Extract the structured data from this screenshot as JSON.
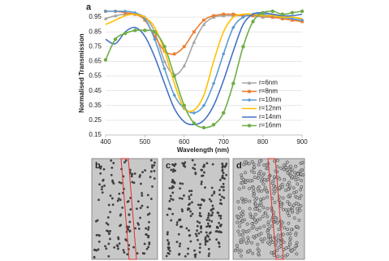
{
  "chart_data": {
    "type": "line",
    "panel_label": "a",
    "x_label": "Wavelength (nm)",
    "y_label": "Normalised Transmission",
    "x": [
      400,
      425,
      450,
      475,
      500,
      525,
      550,
      575,
      600,
      625,
      650,
      675,
      700,
      725,
      750,
      775,
      800,
      825,
      850,
      875,
      900
    ],
    "series": [
      {
        "name": "r=6nm",
        "color": "#a5a5a5",
        "marker": "triangle",
        "values": [
          0.94,
          0.96,
          0.97,
          0.97,
          0.95,
          0.85,
          0.65,
          0.56,
          0.62,
          0.78,
          0.9,
          0.95,
          0.96,
          0.96,
          0.96,
          0.96,
          0.95,
          0.95,
          0.94,
          0.93,
          0.93
        ]
      },
      {
        "name": "r=8nm",
        "color": "#ed7d31",
        "marker": "square",
        "values": [
          0.99,
          0.99,
          0.98,
          0.97,
          0.93,
          0.82,
          0.72,
          0.7,
          0.75,
          0.85,
          0.93,
          0.96,
          0.97,
          0.97,
          0.96,
          0.96,
          0.96,
          0.95,
          0.94,
          0.93,
          0.92
        ]
      },
      {
        "name": "r=10nm",
        "color": "#5b9bd5",
        "marker": "diamond",
        "values": [
          0.99,
          0.99,
          0.99,
          0.98,
          0.94,
          0.8,
          0.6,
          0.42,
          0.33,
          0.3,
          0.35,
          0.5,
          0.7,
          0.88,
          0.95,
          0.97,
          0.97,
          0.96,
          0.95,
          0.94,
          0.93
        ]
      },
      {
        "name": "r=12nm",
        "color": "#ffc000",
        "marker": "none",
        "values": [
          0.9,
          0.93,
          0.96,
          0.97,
          0.95,
          0.88,
          0.72,
          0.5,
          0.33,
          0.32,
          0.42,
          0.65,
          0.85,
          0.95,
          0.97,
          0.97,
          0.96,
          0.96,
          0.95,
          0.95,
          0.94
        ]
      },
      {
        "name": "r=14nm",
        "color": "#4472c4",
        "marker": "none",
        "values": [
          0.8,
          0.77,
          0.85,
          0.88,
          0.82,
          0.68,
          0.5,
          0.33,
          0.24,
          0.22,
          0.25,
          0.35,
          0.52,
          0.72,
          0.9,
          0.97,
          0.98,
          0.97,
          0.96,
          0.96,
          0.97
        ]
      },
      {
        "name": "r=16nm",
        "color": "#70ad47",
        "marker": "circle",
        "values": [
          0.66,
          0.8,
          0.84,
          0.86,
          0.86,
          0.85,
          0.75,
          0.55,
          0.35,
          0.23,
          0.2,
          0.22,
          0.3,
          0.5,
          0.75,
          0.92,
          0.98,
          0.99,
          0.97,
          0.98,
          0.99
        ]
      }
    ],
    "xlim": [
      400,
      900
    ],
    "xticks": [
      400,
      500,
      600,
      700,
      800,
      900
    ],
    "ylim": [
      0.15,
      1.05
    ],
    "yticks": [
      0.15,
      0.25,
      0.35,
      0.45,
      0.55,
      0.65,
      0.75,
      0.85,
      0.95
    ],
    "grid": true,
    "legend": "right"
  },
  "panels": [
    "b",
    "c",
    "d"
  ]
}
